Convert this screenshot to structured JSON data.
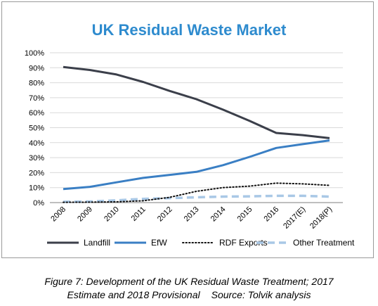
{
  "chart_data": {
    "type": "line",
    "title": "UK Residual Waste Market",
    "xlabel": "",
    "ylabel": "",
    "categories": [
      "2008",
      "2009",
      "2010",
      "2011",
      "2012",
      "2013",
      "2014",
      "2015",
      "2016",
      "2017(E)",
      "2018(P)"
    ],
    "ylim": [
      0,
      100
    ],
    "yticks": [
      "0%",
      "10%",
      "20%",
      "30%",
      "40%",
      "50%",
      "60%",
      "70%",
      "80%",
      "90%",
      "100%"
    ],
    "grid": true,
    "legend_position": "bottom",
    "series": [
      {
        "name": "Landfill",
        "color": "#3b3f4a",
        "style": "solid",
        "values": [
          90.5,
          88.5,
          85.5,
          80.5,
          74.5,
          69,
          62,
          54.5,
          46.5,
          45,
          43
        ]
      },
      {
        "name": "EfW",
        "color": "#3a7fc4",
        "style": "solid",
        "values": [
          9,
          10.5,
          13.5,
          16.5,
          18.5,
          20.5,
          25,
          30.5,
          36.5,
          39,
          41.5
        ]
      },
      {
        "name": "RDF Exports",
        "color": "#111111",
        "style": "dotted",
        "values": [
          0.2,
          0.3,
          0.5,
          1.2,
          3.5,
          7.5,
          10,
          11,
          13,
          12.5,
          11.5
        ]
      },
      {
        "name": "Other Treatment",
        "color": "#a9c8e6",
        "style": "dashed",
        "values": [
          0.5,
          0.7,
          1.5,
          2.5,
          3,
          3.5,
          4,
          4.2,
          4.5,
          4.5,
          4
        ]
      }
    ]
  },
  "caption": {
    "line1": "Figure 7: Development of the UK Residual Waste Treatment; 2017",
    "line2": "Estimate and 2018 Provisional",
    "source": "Source: Tolvik analysis"
  }
}
